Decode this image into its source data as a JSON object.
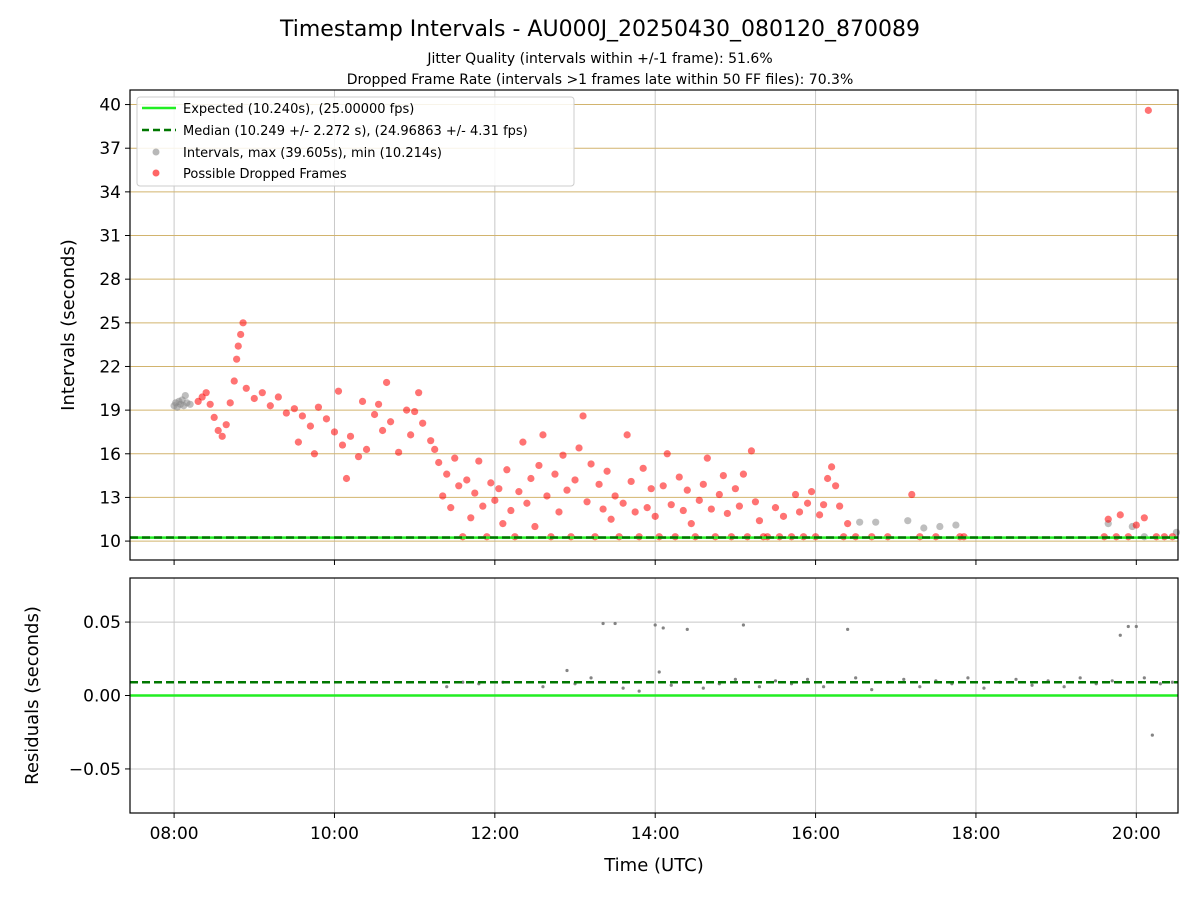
{
  "title": "Timestamp Intervals - AU000J_20250430_080120_870089",
  "subtitle_1": "Jitter Quality (intervals within +/-1 frame): 51.6%",
  "subtitle_2": "Dropped Frame Rate (intervals >1 frames late within 50 FF files): 70.3%",
  "chart_data": [
    {
      "type": "scatter",
      "panel": "top",
      "ylabel": "Intervals (seconds)",
      "xlabel": "",
      "x_unit": "hours UTC",
      "xlim": [
        7.45,
        20.52
      ],
      "ylim": [
        8.7,
        41.0
      ],
      "yticks": [
        10,
        13,
        16,
        19,
        22,
        25,
        28,
        31,
        34,
        37,
        40
      ],
      "ytick_labels": [
        "10",
        "13",
        "16",
        "19",
        "22",
        "25",
        "28",
        "31",
        "34",
        "37",
        "40"
      ],
      "xticks": [
        8,
        10,
        12,
        14,
        16,
        18,
        20
      ],
      "grid": true,
      "grid_color_y": "#d2b46e",
      "legend_position": "upper-left",
      "legend": [
        {
          "label": "Expected (10.240s), (25.00000 fps)",
          "kind": "line",
          "color": "#22ee22"
        },
        {
          "label": "Median (10.249 +/- 2.272 s), (24.96863 +/- 4.31 fps)",
          "kind": "dashed",
          "color": "#007700"
        },
        {
          "label": "Intervals, max (39.605s), min (10.214s)",
          "kind": "marker",
          "color": "#888888"
        },
        {
          "label": "Possible Dropped Frames",
          "kind": "marker",
          "color": "#ff0000"
        }
      ],
      "reference_lines": {
        "expected": 10.24,
        "median": 10.249
      },
      "series": [
        {
          "name": "Intervals, max (39.605s), min (10.214s)",
          "color": "#888888",
          "points": [
            [
              8.0,
              19.3
            ],
            [
              8.02,
              19.5
            ],
            [
              8.04,
              19.2
            ],
            [
              8.06,
              19.6
            ],
            [
              8.08,
              19.4
            ],
            [
              8.1,
              19.7
            ],
            [
              8.12,
              19.3
            ],
            [
              8.14,
              20.0
            ],
            [
              8.16,
              19.5
            ],
            [
              8.2,
              19.4
            ],
            [
              16.55,
              11.3
            ],
            [
              16.75,
              11.3
            ],
            [
              17.15,
              11.4
            ],
            [
              17.35,
              10.9
            ],
            [
              17.55,
              11.0
            ],
            [
              17.75,
              11.1
            ],
            [
              19.65,
              11.2
            ],
            [
              19.95,
              11.0
            ],
            [
              20.5,
              10.6
            ],
            [
              20.1,
              10.3
            ]
          ]
        },
        {
          "name": "Possible Dropped Frames",
          "color": "#ff0000",
          "points": [
            [
              8.3,
              19.6
            ],
            [
              8.35,
              19.9
            ],
            [
              8.4,
              20.2
            ],
            [
              8.45,
              19.4
            ],
            [
              8.5,
              18.5
            ],
            [
              8.55,
              17.6
            ],
            [
              8.6,
              17.2
            ],
            [
              8.65,
              18.0
            ],
            [
              8.7,
              19.5
            ],
            [
              8.75,
              21.0
            ],
            [
              8.78,
              22.5
            ],
            [
              8.8,
              23.4
            ],
            [
              8.83,
              24.2
            ],
            [
              8.86,
              25.0
            ],
            [
              8.9,
              20.5
            ],
            [
              9.0,
              19.8
            ],
            [
              9.1,
              20.2
            ],
            [
              9.2,
              19.3
            ],
            [
              9.3,
              19.9
            ],
            [
              9.4,
              18.8
            ],
            [
              9.5,
              19.1
            ],
            [
              9.55,
              16.8
            ],
            [
              9.6,
              18.6
            ],
            [
              9.7,
              17.9
            ],
            [
              9.75,
              16.0
            ],
            [
              9.8,
              19.2
            ],
            [
              9.9,
              18.4
            ],
            [
              10.0,
              17.5
            ],
            [
              10.05,
              20.3
            ],
            [
              10.1,
              16.6
            ],
            [
              10.15,
              14.3
            ],
            [
              10.2,
              17.2
            ],
            [
              10.3,
              15.8
            ],
            [
              10.35,
              19.6
            ],
            [
              10.4,
              16.3
            ],
            [
              10.5,
              18.7
            ],
            [
              10.55,
              19.4
            ],
            [
              10.6,
              17.6
            ],
            [
              10.65,
              20.9
            ],
            [
              10.7,
              18.2
            ],
            [
              10.8,
              16.1
            ],
            [
              10.9,
              19.0
            ],
            [
              10.95,
              17.3
            ],
            [
              11.0,
              18.9
            ],
            [
              11.05,
              20.2
            ],
            [
              11.1,
              18.1
            ],
            [
              11.2,
              16.9
            ],
            [
              11.25,
              16.3
            ],
            [
              11.3,
              15.4
            ],
            [
              11.35,
              13.1
            ],
            [
              11.4,
              14.6
            ],
            [
              11.45,
              12.3
            ],
            [
              11.5,
              15.7
            ],
            [
              11.55,
              13.8
            ],
            [
              11.6,
              10.3
            ],
            [
              11.65,
              14.2
            ],
            [
              11.7,
              11.6
            ],
            [
              11.75,
              13.3
            ],
            [
              11.8,
              15.5
            ],
            [
              11.85,
              12.4
            ],
            [
              11.9,
              10.3
            ],
            [
              11.95,
              14.0
            ],
            [
              12.0,
              12.8
            ],
            [
              12.05,
              13.6
            ],
            [
              12.1,
              11.2
            ],
            [
              12.15,
              14.9
            ],
            [
              12.2,
              12.1
            ],
            [
              12.25,
              10.3
            ],
            [
              12.3,
              13.4
            ],
            [
              12.35,
              16.8
            ],
            [
              12.4,
              12.6
            ],
            [
              12.45,
              14.3
            ],
            [
              12.5,
              11.0
            ],
            [
              12.55,
              15.2
            ],
            [
              12.6,
              17.3
            ],
            [
              12.65,
              13.1
            ],
            [
              12.7,
              10.3
            ],
            [
              12.75,
              14.6
            ],
            [
              12.8,
              12.0
            ],
            [
              12.85,
              15.9
            ],
            [
              12.9,
              13.5
            ],
            [
              12.95,
              10.3
            ],
            [
              13.0,
              14.2
            ],
            [
              13.05,
              16.4
            ],
            [
              13.1,
              18.6
            ],
            [
              13.15,
              12.7
            ],
            [
              13.2,
              15.3
            ],
            [
              13.25,
              10.3
            ],
            [
              13.3,
              13.9
            ],
            [
              13.35,
              12.2
            ],
            [
              13.4,
              14.8
            ],
            [
              13.45,
              11.5
            ],
            [
              13.5,
              13.1
            ],
            [
              13.55,
              10.3
            ],
            [
              13.6,
              12.6
            ],
            [
              13.65,
              17.3
            ],
            [
              13.7,
              14.1
            ],
            [
              13.75,
              12.0
            ],
            [
              13.8,
              10.3
            ],
            [
              13.85,
              15.0
            ],
            [
              13.9,
              12.3
            ],
            [
              13.95,
              13.6
            ],
            [
              14.0,
              11.7
            ],
            [
              14.05,
              10.3
            ],
            [
              14.1,
              13.8
            ],
            [
              14.15,
              16.0
            ],
            [
              14.2,
              12.5
            ],
            [
              14.25,
              10.3
            ],
            [
              14.3,
              14.4
            ],
            [
              14.35,
              12.1
            ],
            [
              14.4,
              13.5
            ],
            [
              14.45,
              11.2
            ],
            [
              14.5,
              10.3
            ],
            [
              14.55,
              12.8
            ],
            [
              14.6,
              13.9
            ],
            [
              14.65,
              15.7
            ],
            [
              14.7,
              12.2
            ],
            [
              14.75,
              10.3
            ],
            [
              14.8,
              13.2
            ],
            [
              14.85,
              14.5
            ],
            [
              14.9,
              11.9
            ],
            [
              14.95,
              10.3
            ],
            [
              15.0,
              13.6
            ],
            [
              15.05,
              12.4
            ],
            [
              15.1,
              14.6
            ],
            [
              15.15,
              10.3
            ],
            [
              15.2,
              16.2
            ],
            [
              15.25,
              12.7
            ],
            [
              15.3,
              11.4
            ],
            [
              15.35,
              10.3
            ],
            [
              15.4,
              10.3
            ],
            [
              15.5,
              12.3
            ],
            [
              15.55,
              10.3
            ],
            [
              15.6,
              11.7
            ],
            [
              15.7,
              10.3
            ],
            [
              15.75,
              13.2
            ],
            [
              15.8,
              12.0
            ],
            [
              15.85,
              10.3
            ],
            [
              15.9,
              12.6
            ],
            [
              15.95,
              13.4
            ],
            [
              16.0,
              10.3
            ],
            [
              16.05,
              11.8
            ],
            [
              16.1,
              12.5
            ],
            [
              16.15,
              14.3
            ],
            [
              16.2,
              15.1
            ],
            [
              16.25,
              13.8
            ],
            [
              16.3,
              12.4
            ],
            [
              16.35,
              10.3
            ],
            [
              16.4,
              11.2
            ],
            [
              16.5,
              10.3
            ],
            [
              16.7,
              10.3
            ],
            [
              16.9,
              10.3
            ],
            [
              17.2,
              13.2
            ],
            [
              17.3,
              10.3
            ],
            [
              17.5,
              10.3
            ],
            [
              17.8,
              10.3
            ],
            [
              17.85,
              10.3
            ],
            [
              19.6,
              10.3
            ],
            [
              19.65,
              11.5
            ],
            [
              19.75,
              10.3
            ],
            [
              19.8,
              11.8
            ],
            [
              19.9,
              10.3
            ],
            [
              20.0,
              11.1
            ],
            [
              20.1,
              11.6
            ],
            [
              20.15,
              39.6
            ],
            [
              20.25,
              10.3
            ],
            [
              20.35,
              10.3
            ],
            [
              20.45,
              10.3
            ]
          ]
        }
      ]
    },
    {
      "type": "scatter",
      "panel": "bottom",
      "ylabel": "Residuals (seconds)",
      "xlabel": "Time (UTC)",
      "x_unit": "hours UTC",
      "xlim": [
        7.45,
        20.52
      ],
      "ylim": [
        -0.08,
        0.08
      ],
      "yticks": [
        -0.05,
        0.0,
        0.05
      ],
      "ytick_labels": [
        "−0.05",
        "0.00",
        "0.05"
      ],
      "xticks": [
        8,
        10,
        12,
        14,
        16,
        18,
        20
      ],
      "xtick_labels": [
        "08:00",
        "10:00",
        "12:00",
        "14:00",
        "16:00",
        "18:00",
        "20:00"
      ],
      "grid": true,
      "reference_lines": {
        "expected": 0.0,
        "median": 0.009
      },
      "series": [
        {
          "name": "",
          "color": "#777777",
          "points": [
            [
              11.4,
              0.006
            ],
            [
              11.6,
              0.009
            ],
            [
              11.8,
              0.008
            ],
            [
              12.1,
              0.009
            ],
            [
              12.6,
              0.006
            ],
            [
              12.9,
              0.017
            ],
            [
              13.0,
              0.008
            ],
            [
              13.2,
              0.012
            ],
            [
              13.35,
              0.049
            ],
            [
              13.5,
              0.049
            ],
            [
              13.6,
              0.005
            ],
            [
              13.8,
              0.003
            ],
            [
              14.0,
              0.048
            ],
            [
              14.05,
              0.016
            ],
            [
              14.1,
              0.046
            ],
            [
              14.4,
              0.045
            ],
            [
              14.2,
              0.007
            ],
            [
              14.6,
              0.005
            ],
            [
              14.8,
              0.008
            ],
            [
              15.0,
              0.011
            ],
            [
              15.1,
              0.048
            ],
            [
              15.3,
              0.006
            ],
            [
              15.5,
              0.01
            ],
            [
              15.7,
              0.008
            ],
            [
              15.9,
              0.011
            ],
            [
              16.1,
              0.006
            ],
            [
              16.4,
              0.045
            ],
            [
              16.5,
              0.012
            ],
            [
              16.7,
              0.004
            ],
            [
              16.9,
              0.009
            ],
            [
              17.1,
              0.011
            ],
            [
              17.3,
              0.006
            ],
            [
              17.5,
              0.01
            ],
            [
              17.7,
              0.008
            ],
            [
              17.9,
              0.012
            ],
            [
              18.1,
              0.005
            ],
            [
              18.3,
              0.009
            ],
            [
              18.5,
              0.011
            ],
            [
              18.7,
              0.007
            ],
            [
              18.9,
              0.01
            ],
            [
              19.1,
              0.006
            ],
            [
              19.3,
              0.012
            ],
            [
              19.5,
              0.008
            ],
            [
              19.7,
              0.01
            ],
            [
              19.8,
              0.041
            ],
            [
              19.9,
              0.047
            ],
            [
              20.0,
              0.047
            ],
            [
              20.1,
              0.012
            ],
            [
              20.2,
              -0.027
            ],
            [
              20.3,
              0.008
            ],
            [
              20.45,
              0.009
            ]
          ]
        }
      ]
    }
  ],
  "colors": {
    "expected": "#22ee22",
    "median": "#007700",
    "intervals": "#888888",
    "dropped": "#ff0000",
    "hgrid": "#d2b46e",
    "grid": "#c8c8c8"
  }
}
